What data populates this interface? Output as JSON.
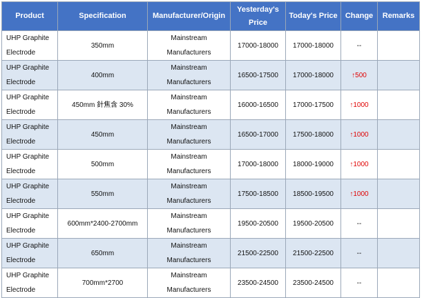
{
  "headers": [
    "Product",
    "Specification",
    "Manufacturer/Origin",
    "Yesterday's Price",
    "Today's Price",
    "Change",
    "Remarks"
  ],
  "rows": [
    {
      "product": "UHP Graphite Electrode",
      "spec": "350mm",
      "manu": "Mainstream Manufacturers",
      "yesterday": "17000-18000",
      "today": "17000-18000",
      "change": "--",
      "remarks": ""
    },
    {
      "product": "UHP Graphite Electrode",
      "spec": "400mm",
      "manu": "Mainstream Manufacturers",
      "yesterday": "16500-17500",
      "today": "17000-18000",
      "change": "↑500",
      "remarks": ""
    },
    {
      "product": "UHP Graphite Electrode",
      "spec": "450mm 針焦含 30%",
      "manu": "Mainstream Manufacturers",
      "yesterday": "16000-16500",
      "today": "17000-17500",
      "change": "↑1000",
      "remarks": ""
    },
    {
      "product": "UHP Graphite Electrode",
      "spec": "450mm",
      "manu": "Mainstream Manufacturers",
      "yesterday": "16500-17000",
      "today": "17500-18000",
      "change": "↑1000",
      "remarks": ""
    },
    {
      "product": "UHP Graphite Electrode",
      "spec": "500mm",
      "manu": "Mainstream Manufacturers",
      "yesterday": "17000-18000",
      "today": "18000-19000",
      "change": "↑1000",
      "remarks": ""
    },
    {
      "product": "UHP Graphite Electrode",
      "spec": "550mm",
      "manu": "Mainstream Manufacturers",
      "yesterday": "17500-18500",
      "today": "18500-19500",
      "change": "↑1000",
      "remarks": ""
    },
    {
      "product": "UHP Graphite Electrode",
      "spec": "600mm*2400-2700mm",
      "manu": "Mainstream Manufacturers",
      "yesterday": "19500-20500",
      "today": "19500-20500",
      "change": "--",
      "remarks": ""
    },
    {
      "product": "UHP Graphite Electrode",
      "spec": "650mm",
      "manu": "Mainstream Manufacturers",
      "yesterday": "21500-22500",
      "today": "21500-22500",
      "change": "--",
      "remarks": ""
    },
    {
      "product": "UHP Graphite Electrode",
      "spec": "700mm*2700",
      "manu": "Mainstream Manufacturers",
      "yesterday": "23500-24500",
      "today": "23500-24500",
      "change": "--",
      "remarks": ""
    }
  ],
  "colors": {
    "header_bg": "#4473c5",
    "band_bg": "#dce6f2",
    "increase": "#e00000"
  }
}
